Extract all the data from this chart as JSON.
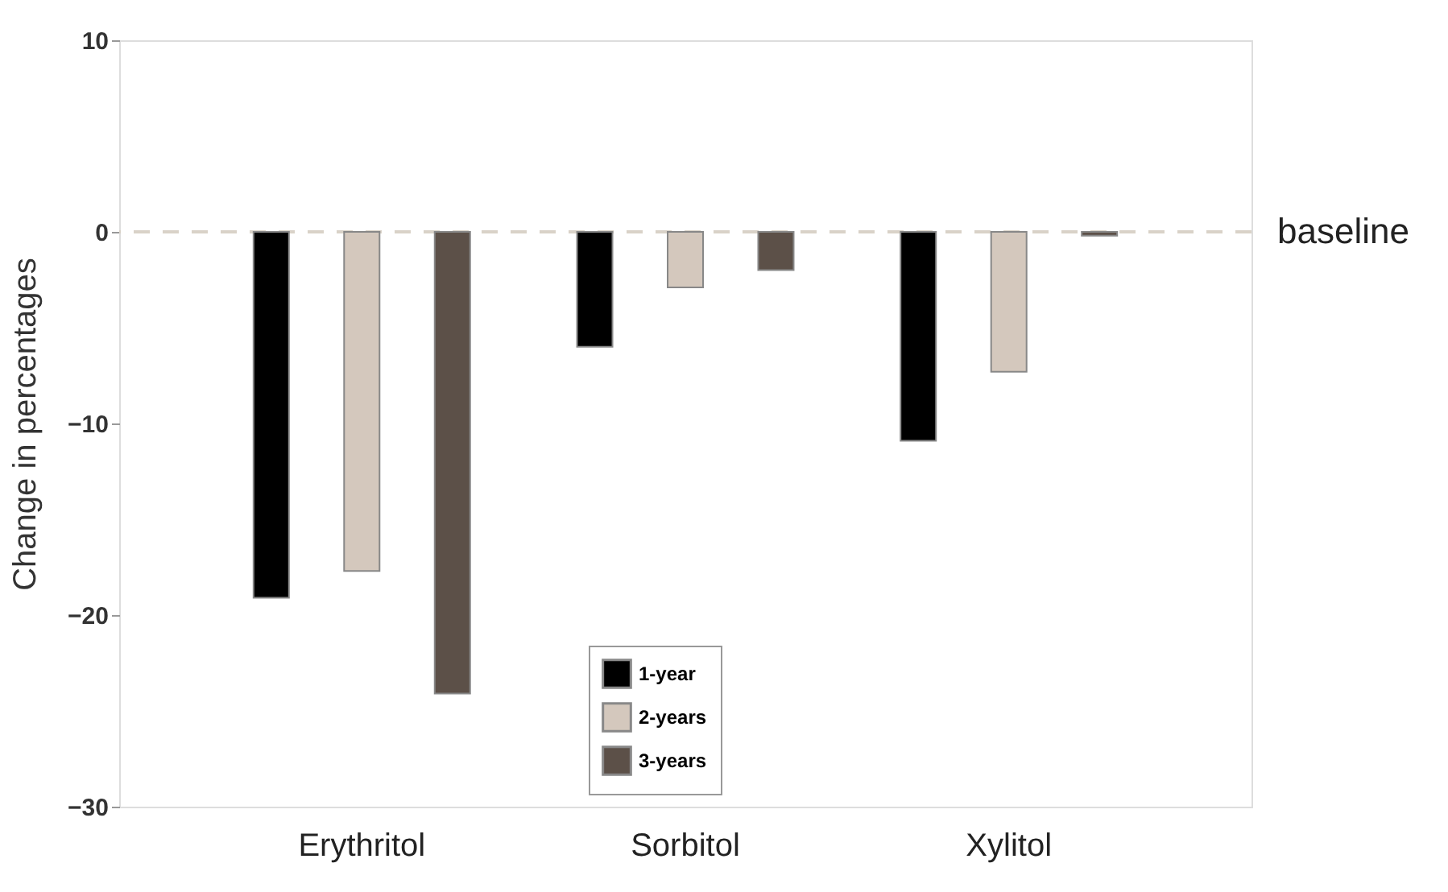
{
  "chart_data": {
    "type": "bar",
    "ylabel": "Change in percentages",
    "categories": [
      "Erythritol",
      "Sorbitol",
      "Xylitol"
    ],
    "series": [
      {
        "name": "1-year",
        "color": "#000000",
        "values": [
          -19.1,
          -6.0,
          -10.9
        ]
      },
      {
        "name": "2-years",
        "color": "#d4c8bd",
        "values": [
          -17.7,
          -2.9,
          -7.3
        ]
      },
      {
        "name": "3-years",
        "color": "#5c5048",
        "values": [
          -24.1,
          -2.0,
          -0.2
        ]
      }
    ],
    "ylim": [
      -30,
      10
    ],
    "yticks": [
      -30,
      -20,
      -10,
      0,
      10
    ],
    "grid": false,
    "legend": "bottom",
    "ref_lines": [
      {
        "axis": "y",
        "value": 0,
        "label": "baseline",
        "color": "#d9d2c8",
        "line_style": "dashed"
      }
    ]
  }
}
